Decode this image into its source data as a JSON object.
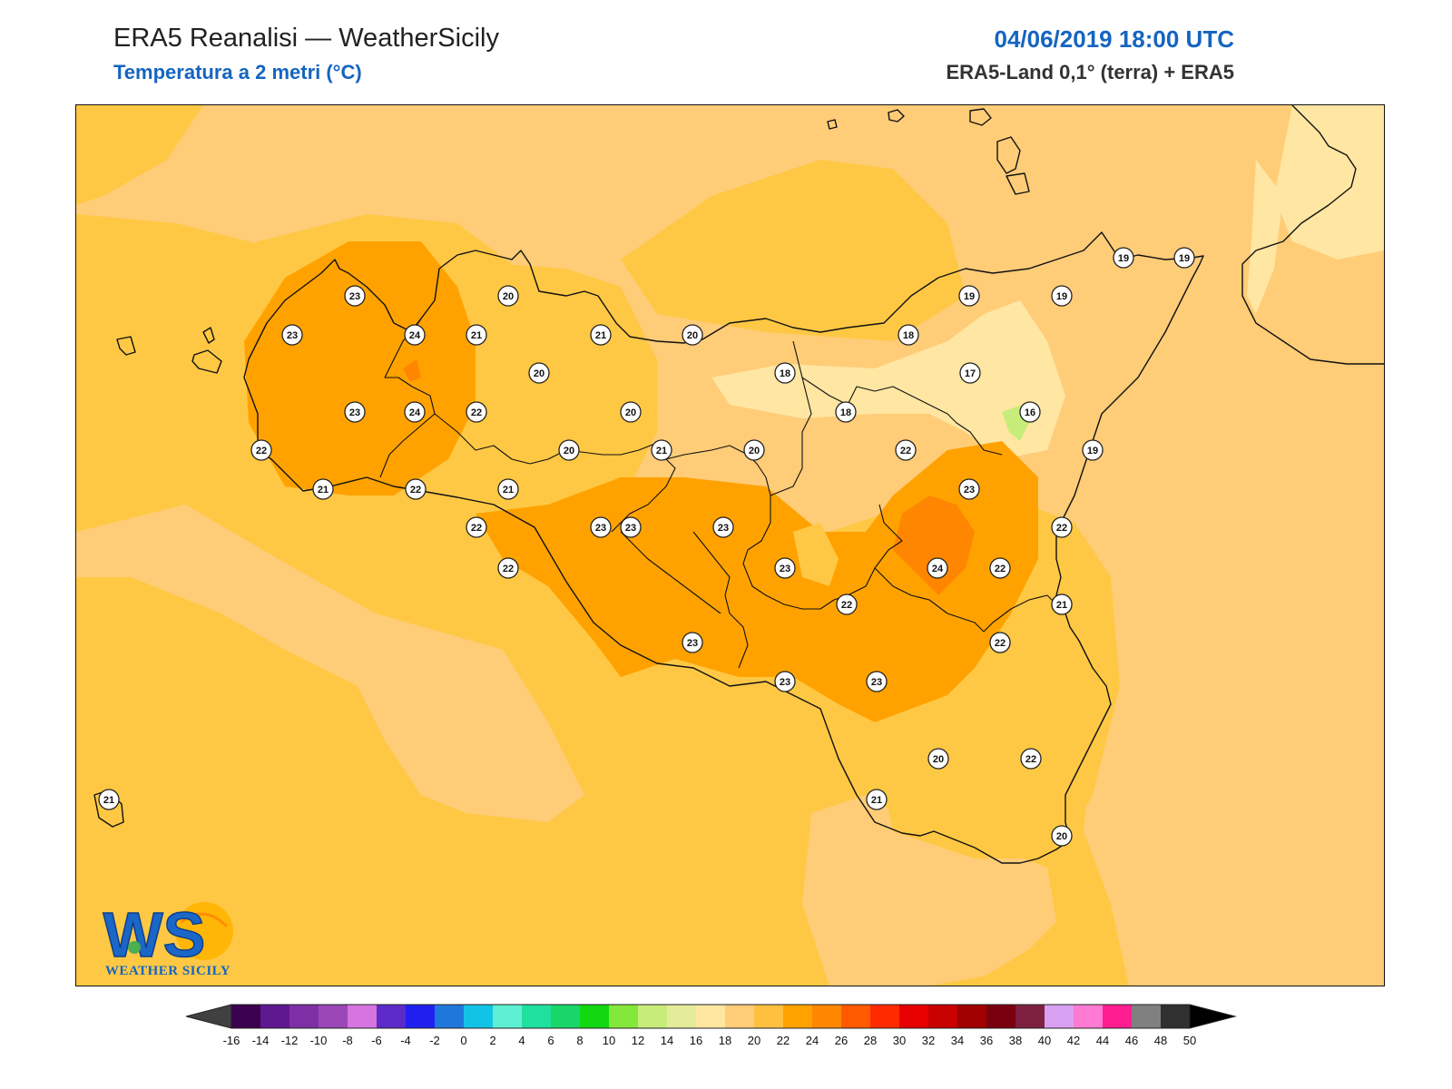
{
  "header": {
    "title": "ERA5 Reanalisi — WeatherSicily",
    "subtitle": "Temperatura a 2 metri (°C)",
    "datetime": "04/06/2019 18:00 UTC",
    "source": "ERA5-Land 0,1° (terra) + ERA5"
  },
  "logo": {
    "monogram": "WS",
    "text": "WEATHER SICILY"
  },
  "stations": [
    {
      "value": 23
    },
    {
      "value": 23
    },
    {
      "value": 24
    },
    {
      "value": 21
    },
    {
      "value": 20
    },
    {
      "value": 20
    },
    {
      "value": 23
    },
    {
      "value": 24
    },
    {
      "value": 22
    },
    {
      "value": 22
    },
    {
      "value": 21
    },
    {
      "value": 22
    },
    {
      "value": 21
    },
    {
      "value": 20
    },
    {
      "value": 21
    },
    {
      "value": 20
    },
    {
      "value": 21
    },
    {
      "value": 20
    },
    {
      "value": 20
    },
    {
      "value": 18
    },
    {
      "value": 18
    },
    {
      "value": 18
    },
    {
      "value": 19
    },
    {
      "value": 19
    },
    {
      "value": 19
    },
    {
      "value": 19
    },
    {
      "value": 17
    },
    {
      "value": 16
    },
    {
      "value": 19
    },
    {
      "value": 22
    },
    {
      "value": 22
    },
    {
      "value": 23
    },
    {
      "value": 22
    },
    {
      "value": 23
    },
    {
      "value": 23
    },
    {
      "value": 23
    },
    {
      "value": 23
    },
    {
      "value": 22
    },
    {
      "value": 22
    },
    {
      "value": 22
    },
    {
      "value": 24
    },
    {
      "value": 23
    },
    {
      "value": 21
    },
    {
      "value": 22
    },
    {
      "value": 23
    },
    {
      "value": 23
    },
    {
      "value": 23
    },
    {
      "value": 21
    },
    {
      "value": 20
    },
    {
      "value": 22
    },
    {
      "value": 21
    },
    {
      "value": 20
    },
    {
      "value": 21
    }
  ],
  "colorbar": {
    "ticks": [
      "-16",
      "-14",
      "-12",
      "-10",
      "-8",
      "-6",
      "-4",
      "-2",
      "0",
      "2",
      "4",
      "6",
      "8",
      "10",
      "12",
      "14",
      "16",
      "18",
      "20",
      "22",
      "24",
      "26",
      "28",
      "30",
      "32",
      "34",
      "36",
      "38",
      "40",
      "42",
      "44",
      "46",
      "48",
      "50"
    ],
    "colors": [
      "#3c0050",
      "#5e1890",
      "#7f2fa6",
      "#9b47b8",
      "#d674e0",
      "#5b2ac9",
      "#1f1ff0",
      "#1e78dc",
      "#12c3e6",
      "#5ef0d2",
      "#20e0a0",
      "#18d66a",
      "#12d812",
      "#84e83a",
      "#c8ec7a",
      "#e4ec9c",
      "#ffe7a2",
      "#ffcc78",
      "#ffc040",
      "#ffa200",
      "#ff8600",
      "#ff5a00",
      "#ff2a00",
      "#e60000",
      "#c80000",
      "#a00000",
      "#7a0010",
      "#7e2040",
      "#d8a0f0",
      "#ff7ad2",
      "#ff1e90",
      "#808080",
      "#303030"
    ],
    "under_color": "#404040",
    "over_color": "#000000",
    "unit": "°C"
  }
}
